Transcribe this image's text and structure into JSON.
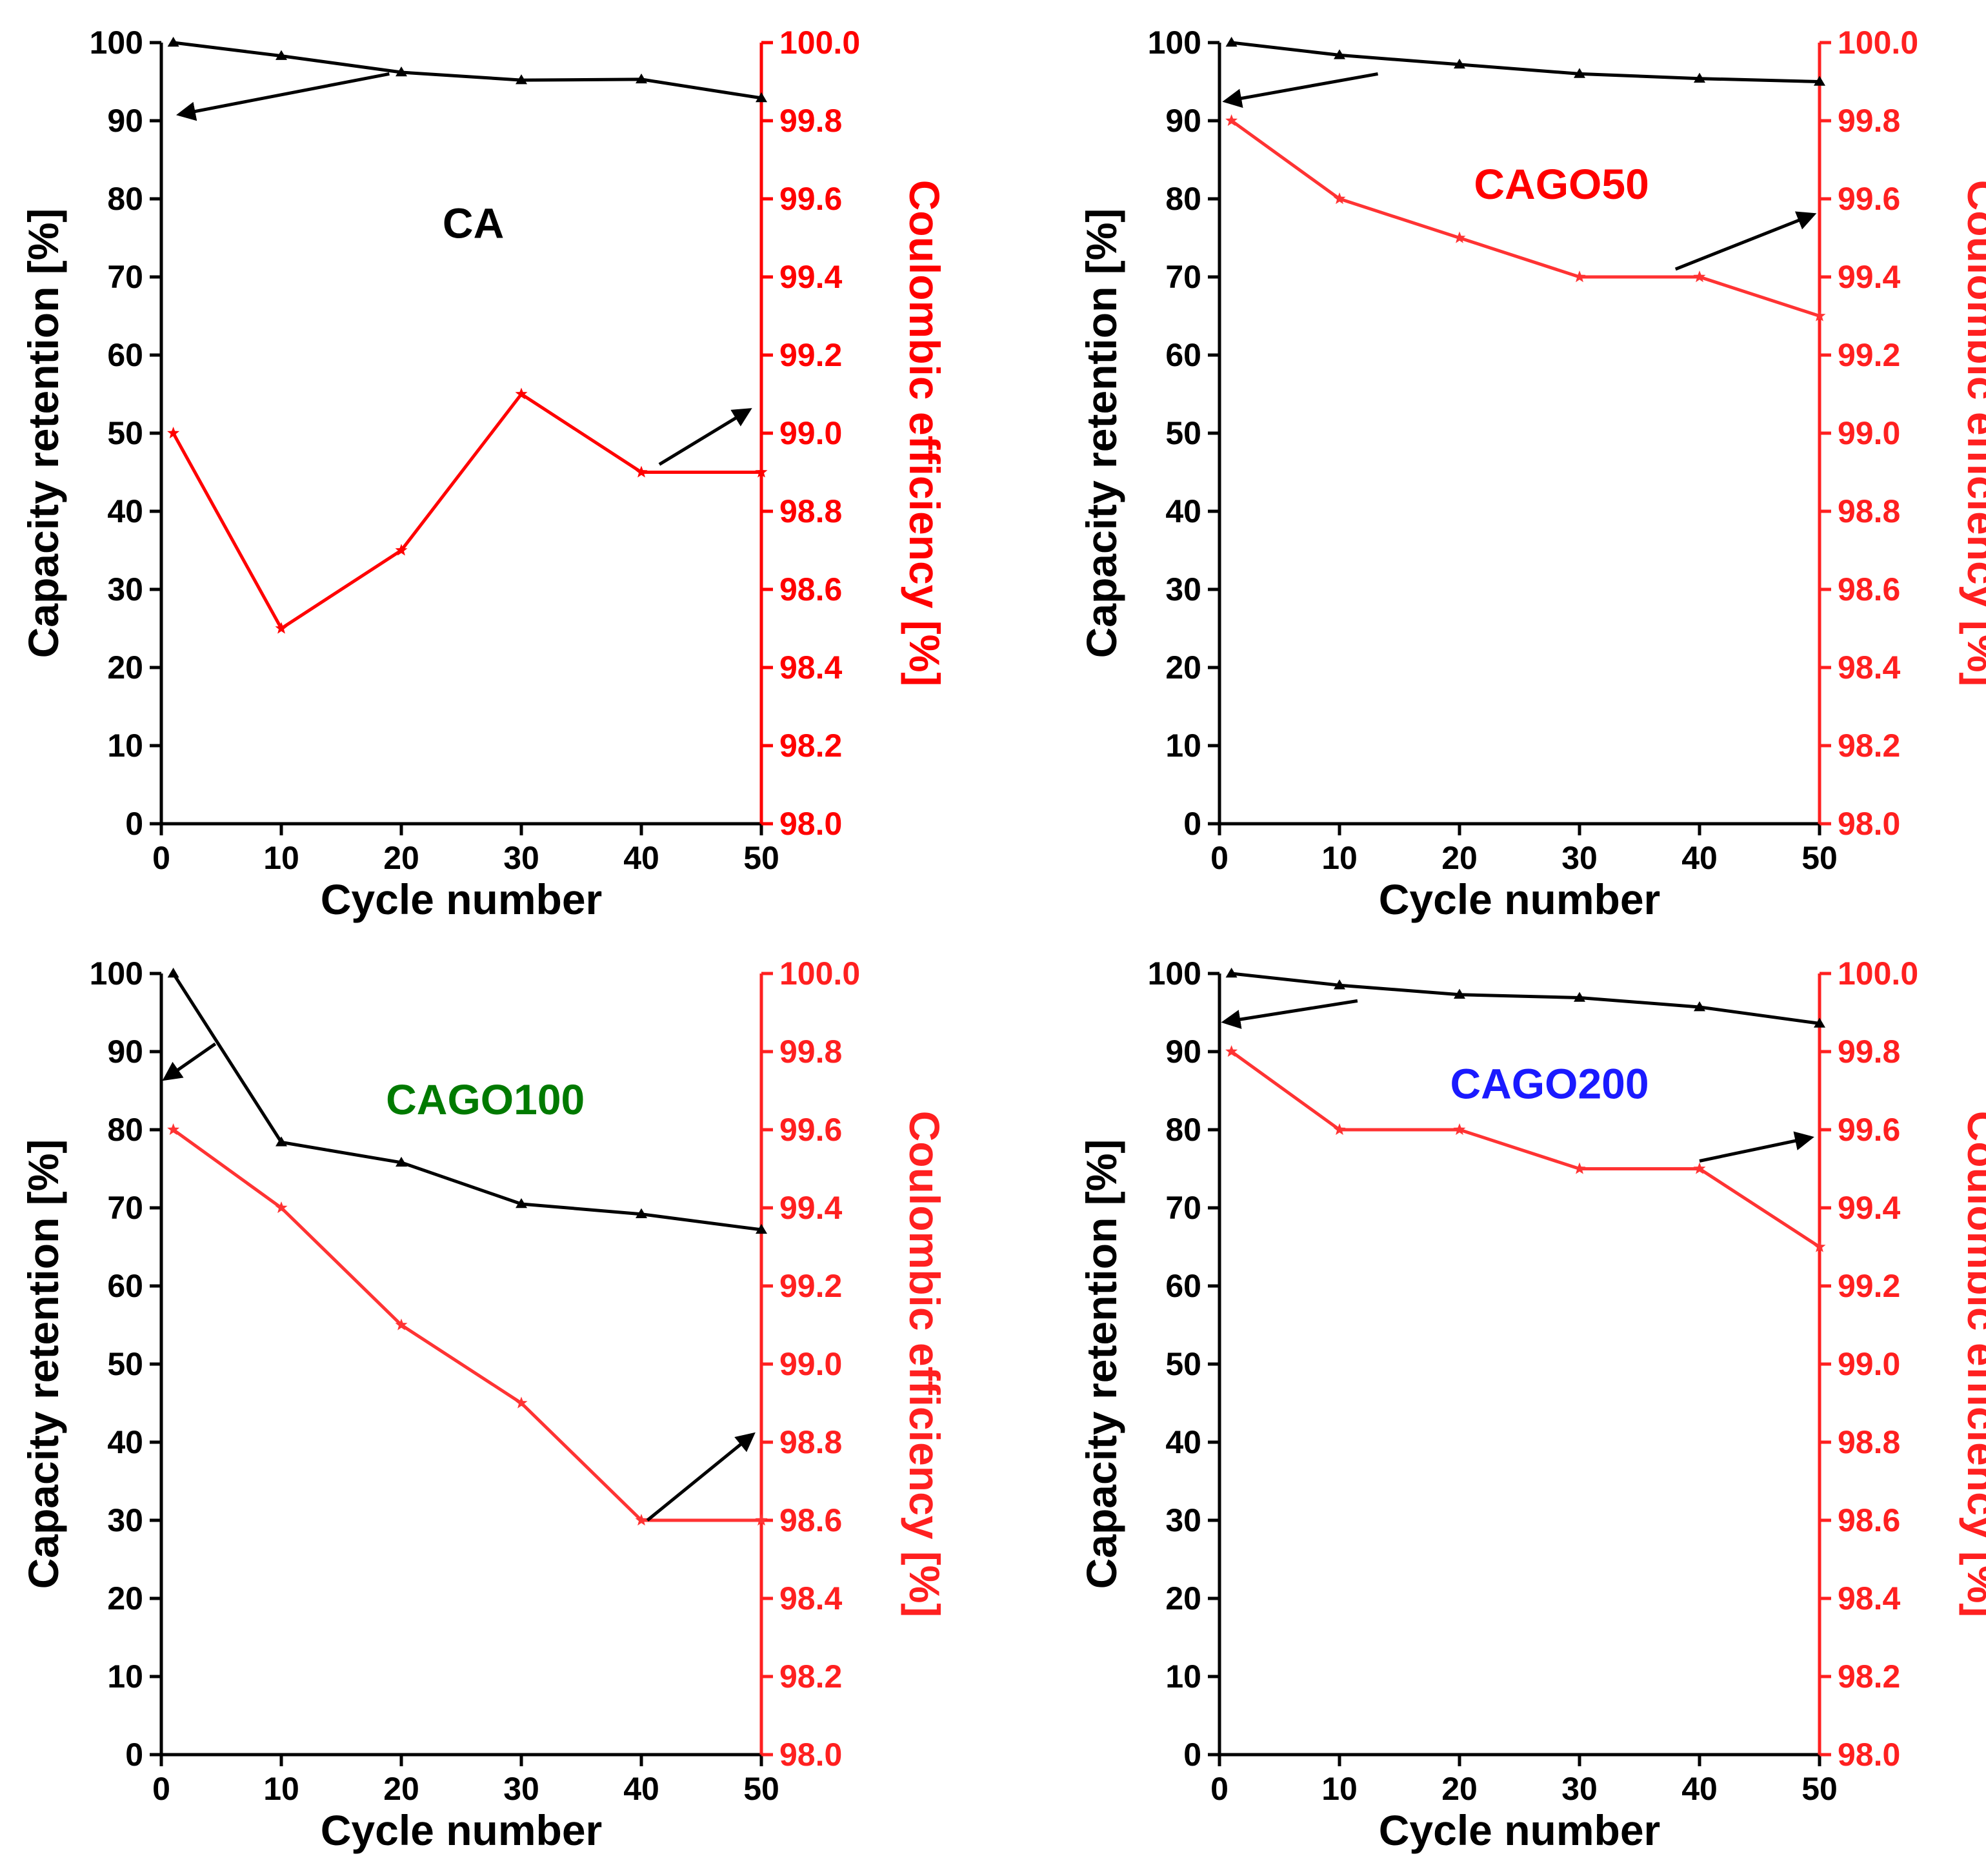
{
  "chart_data": [
    {
      "type": "line",
      "panel": "top-left",
      "title": "CA",
      "title_color": "#000000",
      "xlabel": "Cycle number",
      "ylabel_left": "Capacity retention [%]",
      "ylabel_right": "Coulombic efficiency [%]",
      "xlim": [
        0,
        50
      ],
      "ylim_left": [
        0,
        100
      ],
      "ylim_right": [
        98.0,
        100.0
      ],
      "x_ticks": [
        "0",
        "10",
        "20",
        "30",
        "40",
        "50"
      ],
      "y_left_ticks": [
        "0",
        "10",
        "20",
        "30",
        "40",
        "50",
        "60",
        "70",
        "80",
        "90",
        "100"
      ],
      "y_right_ticks": [
        "98.0",
        "98.2",
        "98.4",
        "98.6",
        "98.8",
        "99.0",
        "99.2",
        "99.4",
        "99.6",
        "99.8",
        "100.0"
      ],
      "right_axis_color": "#ff0000",
      "grid": false,
      "series": [
        {
          "name": "Capacity retention",
          "axis": "left",
          "color": "#000000",
          "marker": "triangle",
          "x": [
            1,
            10,
            20,
            30,
            40,
            50
          ],
          "values": [
            100,
            98.3,
            96.2,
            95.2,
            95.3,
            92.9
          ]
        },
        {
          "name": "Coulombic efficiency",
          "axis": "right",
          "color": "#ff0000",
          "marker": "star",
          "x": [
            1,
            10,
            20,
            30,
            40,
            50
          ],
          "values": [
            99.0,
            98.5,
            98.7,
            99.1,
            98.9,
            98.9
          ]
        }
      ],
      "arrows": [
        {
          "from": [
            19,
            96
          ],
          "to": [
            1.5,
            90.8
          ],
          "axis": "left"
        },
        {
          "from": [
            41.5,
            98.92
          ],
          "to": [
            49,
            99.06
          ],
          "axis": "right"
        }
      ]
    },
    {
      "type": "line",
      "panel": "top-right",
      "title": "CAGO50",
      "title_color": "#ff0000",
      "xlabel": "Cycle number",
      "ylabel_left": "Capacity retention [%]",
      "ylabel_right": "Coulombic efficiency [%]",
      "xlim": [
        0,
        50
      ],
      "ylim_left": [
        0,
        100
      ],
      "ylim_right": [
        98.0,
        100.0
      ],
      "x_ticks": [
        "0",
        "10",
        "20",
        "30",
        "40",
        "50"
      ],
      "y_left_ticks": [
        "0",
        "10",
        "20",
        "30",
        "40",
        "50",
        "60",
        "70",
        "80",
        "90",
        "100"
      ],
      "y_right_ticks": [
        "98.0",
        "98.2",
        "98.4",
        "98.6",
        "98.8",
        "99.0",
        "99.2",
        "99.4",
        "99.6",
        "99.8",
        "100.0"
      ],
      "right_axis_color": "#ff2020",
      "grid": false,
      "series": [
        {
          "name": "Capacity retention",
          "axis": "left",
          "color": "#000000",
          "marker": "triangle",
          "x": [
            1,
            10,
            20,
            30,
            40,
            50
          ],
          "values": [
            100,
            98.4,
            97.2,
            96.0,
            95.4,
            95.0
          ]
        },
        {
          "name": "Coulombic efficiency",
          "axis": "right",
          "color": "#ff3333",
          "marker": "star",
          "x": [
            1,
            10,
            20,
            30,
            40,
            50
          ],
          "values": [
            99.8,
            99.6,
            99.5,
            99.4,
            99.4,
            99.3
          ]
        }
      ],
      "arrows": [
        {
          "from": [
            13.2,
            96
          ],
          "to": [
            0.5,
            92.5
          ],
          "axis": "left"
        },
        {
          "from": [
            38,
            99.42
          ],
          "to": [
            49.5,
            99.56
          ],
          "axis": "right"
        }
      ]
    },
    {
      "type": "line",
      "panel": "bottom-left",
      "title": "CAGO100",
      "title_color": "#007a00",
      "xlabel": "Cycle number",
      "ylabel_left": "Capacity retention [%]",
      "ylabel_right": "Coulombic efficiency [%]",
      "xlim": [
        0,
        50
      ],
      "ylim_left": [
        0,
        100
      ],
      "ylim_right": [
        98.0,
        100.0
      ],
      "x_ticks": [
        "0",
        "10",
        "20",
        "30",
        "40",
        "50"
      ],
      "y_left_ticks": [
        "0",
        "10",
        "20",
        "30",
        "40",
        "50",
        "60",
        "70",
        "80",
        "90",
        "100"
      ],
      "y_right_ticks": [
        "98.0",
        "98.2",
        "98.4",
        "98.6",
        "98.8",
        "99.0",
        "99.2",
        "99.4",
        "99.6",
        "99.8",
        "100.0"
      ],
      "right_axis_color": "#ff2020",
      "grid": false,
      "series": [
        {
          "name": "Capacity retention",
          "axis": "left",
          "color": "#000000",
          "marker": "triangle",
          "x": [
            1,
            10,
            20,
            30,
            40,
            50
          ],
          "values": [
            100,
            78.4,
            75.8,
            70.5,
            69.2,
            67.2
          ]
        },
        {
          "name": "Coulombic efficiency",
          "axis": "right",
          "color": "#ff3333",
          "marker": "star",
          "x": [
            1,
            10,
            20,
            30,
            40,
            50
          ],
          "values": [
            99.6,
            99.4,
            99.1,
            98.9,
            98.6,
            98.6
          ]
        }
      ],
      "arrows": [
        {
          "from": [
            4.5,
            91
          ],
          "to": [
            0.3,
            86.5
          ],
          "axis": "left"
        },
        {
          "from": [
            40.5,
            98.6
          ],
          "to": [
            49.3,
            98.82
          ],
          "axis": "right"
        }
      ]
    },
    {
      "type": "line",
      "panel": "bottom-right",
      "title": "CAGO200",
      "title_color": "#1a1aff",
      "xlabel": "Cycle number",
      "ylabel_left": "Capacity retention [%]",
      "ylabel_right": "Coulombic efficiency [%]",
      "xlim": [
        0,
        50
      ],
      "ylim_left": [
        0,
        100
      ],
      "ylim_right": [
        98.0,
        100.0
      ],
      "x_ticks": [
        "0",
        "10",
        "20",
        "30",
        "40",
        "50"
      ],
      "y_left_ticks": [
        "0",
        "10",
        "20",
        "30",
        "40",
        "50",
        "60",
        "70",
        "80",
        "90",
        "100"
      ],
      "y_right_ticks": [
        "98.0",
        "98.2",
        "98.4",
        "98.6",
        "98.8",
        "99.0",
        "99.2",
        "99.4",
        "99.6",
        "99.8",
        "100.0"
      ],
      "right_axis_color": "#ff2020",
      "grid": false,
      "series": [
        {
          "name": "Capacity retention",
          "axis": "left",
          "color": "#000000",
          "marker": "triangle",
          "x": [
            1,
            10,
            20,
            30,
            40,
            50
          ],
          "values": [
            100,
            98.5,
            97.3,
            96.9,
            95.7,
            93.6
          ]
        },
        {
          "name": "Coulombic efficiency",
          "axis": "right",
          "color": "#ff3333",
          "marker": "star",
          "x": [
            1,
            10,
            20,
            30,
            40,
            50
          ],
          "values": [
            99.8,
            99.6,
            99.6,
            99.5,
            99.5,
            99.3
          ]
        }
      ],
      "arrows": [
        {
          "from": [
            11.5,
            96.5
          ],
          "to": [
            0.4,
            93.8
          ],
          "axis": "left"
        },
        {
          "from": [
            40,
            99.52
          ],
          "to": [
            49.3,
            99.58
          ],
          "axis": "right"
        }
      ]
    }
  ]
}
